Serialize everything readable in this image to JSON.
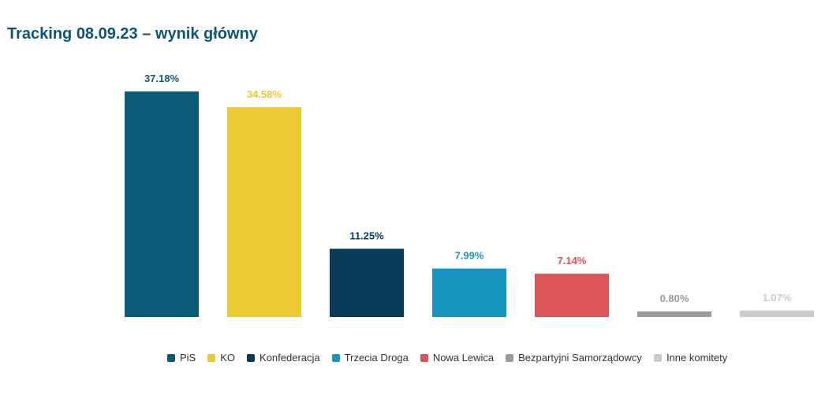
{
  "chart_data": {
    "type": "bar",
    "title": "Tracking 08.09.23 – wynik główny",
    "categories": [
      "PiS",
      "KO",
      "Konfederacja",
      "Trzecia Droga",
      "Nowa Lewica",
      "Bezpartyjni Samorządowcy",
      "Inne komitety"
    ],
    "values": [
      37.18,
      34.58,
      11.25,
      7.99,
      7.14,
      0.8,
      1.07
    ],
    "data_labels": [
      "37.18%",
      "34.58%",
      "11.25%",
      "7.99%",
      "7.14%",
      "0.80%",
      "1.07%"
    ],
    "colors": [
      "#0b5a78",
      "#ecc932",
      "#083b58",
      "#1696c0",
      "#de5456",
      "#9b9b9b",
      "#cccccc"
    ],
    "label_colors": [
      "#0b5a78",
      "#ecc932",
      "#083b58",
      "#1696c0",
      "#de5456",
      "#9b9b9b",
      "#cccccc"
    ],
    "xlabel": "",
    "ylabel": "",
    "ylim": [
      0,
      40
    ],
    "grid": false,
    "legend": "bottom"
  }
}
